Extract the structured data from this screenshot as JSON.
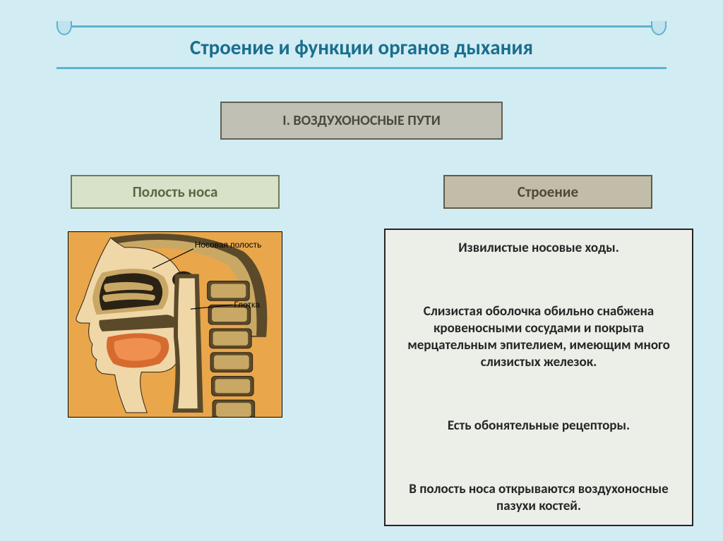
{
  "colors": {
    "slide_bg": "#d2ecf3",
    "title_border": "#5fb2cf",
    "title_text": "#1a6e8e",
    "scroll_fill": "#bfe3ef",
    "section_bg": "#c0c1b4",
    "section_border": "#5f6054",
    "section_text": "#4a4b3f",
    "leftbox_bg": "#d8e2c9",
    "leftbox_border": "#6e7b56",
    "leftbox_text": "#5a6843",
    "rightbox_bg": "#c1bda9",
    "rightbox_border": "#605c48",
    "rightbox_text": "#4e4a36",
    "desc_bg": "#eceee8",
    "desc_border": "#262626",
    "desc_text": "#262626",
    "anat_bg": "#e9a64a",
    "anat_bone": "#5a4a2a",
    "anat_bone_inner": "#c9a866",
    "anat_soft": "#f0d7a8",
    "anat_muscle": "#d66b30",
    "anat_dark": "#2a2215",
    "anat_highlight": "#fff3d6"
  },
  "title": "Строение и функции органов дыхания",
  "section": "I. ВОЗДУХОНОСНЫЕ ПУТИ",
  "left_label": "Полость носа",
  "right_label": "Строение",
  "anatomy_labels": {
    "nasal": "Носовая полость",
    "pharynx": "Глотка"
  },
  "desc_p1": "Извилистые носовые ходы.",
  "desc_p2": "Слизистая оболочка обильно снабжена кровеносными сосудами и покрыта мерцательным эпителием, имеющим много слизистых железок.",
  "desc_p3": "Есть обонятельные рецепторы.",
  "desc_p4": "В полость носа открываются воздухоносные пазухи костей."
}
